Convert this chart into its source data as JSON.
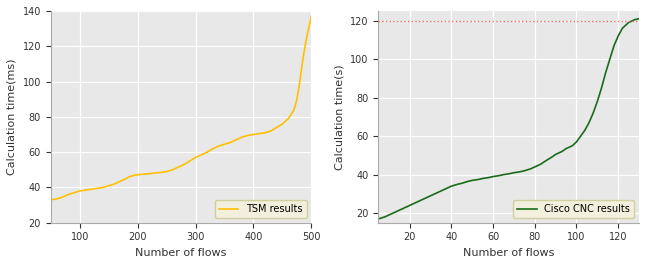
{
  "left": {
    "ylabel": "Calculation time(ms)",
    "xlabel": "Number of flows",
    "legend": "TSM results",
    "line_color": "#FFC000",
    "ylim": [
      20,
      140
    ],
    "xlim": [
      50,
      500
    ],
    "yticks": [
      20,
      40,
      60,
      80,
      100,
      120,
      140
    ],
    "xticks": [
      100,
      200,
      300,
      400,
      500
    ],
    "bg_color": "#e8e8e8"
  },
  "right": {
    "ylabel": "Calculation time(s)",
    "xlabel": "Number of flows",
    "legend": "Cisco CNC results",
    "line_color": "#1a6b1a",
    "hline_y": 120,
    "hline_color": "#ff6060",
    "ylim": [
      15,
      125
    ],
    "xlim": [
      5,
      130
    ],
    "yticks": [
      20,
      40,
      60,
      80,
      100,
      120
    ],
    "xticks": [
      20,
      40,
      60,
      80,
      100,
      120
    ],
    "bg_color": "#e8e8e8"
  },
  "tsm_x": [
    50,
    60,
    70,
    80,
    90,
    100,
    110,
    120,
    130,
    140,
    150,
    160,
    170,
    180,
    185,
    190,
    195,
    200,
    210,
    220,
    230,
    240,
    250,
    260,
    270,
    280,
    290,
    300,
    310,
    320,
    330,
    340,
    350,
    360,
    370,
    380,
    390,
    400,
    410,
    420,
    430,
    440,
    450,
    460,
    470,
    475,
    480,
    485,
    490,
    495,
    500
  ],
  "tsm_y": [
    33,
    33.5,
    34.5,
    36,
    37,
    38,
    38.5,
    39,
    39.5,
    40,
    41,
    42,
    43.5,
    45,
    46,
    46.5,
    47,
    47.2,
    47.5,
    47.8,
    48.2,
    48.5,
    49,
    50,
    51.5,
    53,
    55,
    57,
    58.5,
    60,
    62,
    63.5,
    64.5,
    65.5,
    67,
    68.5,
    69.5,
    70,
    70.5,
    71,
    72,
    74,
    76,
    79,
    84,
    90,
    100,
    112,
    122,
    130,
    137
  ],
  "cnc_x": [
    5,
    8,
    10,
    13,
    15,
    18,
    20,
    23,
    25,
    28,
    30,
    33,
    35,
    38,
    40,
    43,
    45,
    48,
    50,
    53,
    55,
    58,
    60,
    63,
    65,
    68,
    70,
    73,
    75,
    78,
    80,
    83,
    85,
    88,
    90,
    93,
    95,
    98,
    100,
    102,
    104,
    106,
    108,
    110,
    112,
    114,
    116,
    118,
    120,
    122,
    125,
    128,
    130
  ],
  "cnc_y": [
    17,
    18,
    19,
    20.5,
    21.5,
    23,
    24,
    25.5,
    26.5,
    28,
    29,
    30.5,
    31.5,
    33,
    34,
    35,
    35.5,
    36.5,
    37,
    37.5,
    38,
    38.5,
    39,
    39.5,
    40,
    40.5,
    41,
    41.5,
    42,
    43,
    44,
    45.5,
    47,
    49,
    50.5,
    52,
    53.5,
    55,
    57,
    60,
    63,
    67,
    72,
    78,
    85,
    93,
    100,
    107,
    112,
    116,
    119,
    120.5,
    121
  ]
}
